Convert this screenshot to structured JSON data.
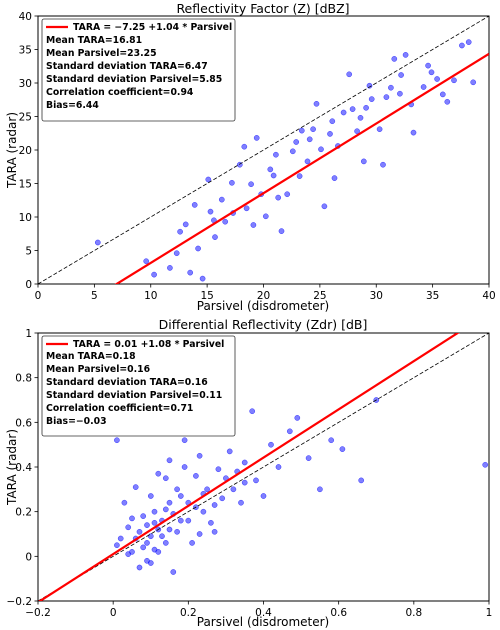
{
  "chart_data": [
    {
      "type": "scatter",
      "title": "Reflectivity Factor (Z) [dBZ]",
      "xlabel": "Parsivel (disdrometer)",
      "ylabel": "TARA (radar)",
      "xlim": [
        0,
        40
      ],
      "ylim": [
        0,
        40
      ],
      "xticks": [
        "0",
        "5",
        "10",
        "15",
        "20",
        "25",
        "30",
        "35",
        "40"
      ],
      "yticks": [
        "0",
        "5",
        "10",
        "15",
        "20",
        "25",
        "30",
        "35",
        "40"
      ],
      "grid": false,
      "legend_position": "top-left",
      "fit": {
        "intercept": -7.25,
        "slope": 1.04
      },
      "fit_label": "TARA = −7.25 +1.04 * Parsivel",
      "stats": [
        "Mean TARA=16.81",
        "Mean Parsivel=23.25",
        "Standard deviation TARA=6.47",
        "Standard deviation Parsivel=5.85",
        "Correlation coefficient=0.94",
        "Bias=6.44"
      ],
      "colors": {
        "points": "#0000ff",
        "fit_line": "#ff0000",
        "identity_line": "#000000"
      },
      "series": [
        {
          "values": [
            [
              5.3,
              6.2
            ],
            [
              9.6,
              3.4
            ],
            [
              10.3,
              1.4
            ],
            [
              11.7,
              2.4
            ],
            [
              12.3,
              4.6
            ],
            [
              13.5,
              1.7
            ],
            [
              14.6,
              0.8
            ],
            [
              15.7,
              7.0
            ],
            [
              13.1,
              8.9
            ],
            [
              13.9,
              11.8
            ],
            [
              15.1,
              15.6
            ],
            [
              14.2,
              5.3
            ],
            [
              12.6,
              7.8
            ],
            [
              15.6,
              9.5
            ],
            [
              16.3,
              12.6
            ],
            [
              17.2,
              15.1
            ],
            [
              17.9,
              17.8
            ],
            [
              18.3,
              20.5
            ],
            [
              19.4,
              21.8
            ],
            [
              18.5,
              11.3
            ],
            [
              19.1,
              8.8
            ],
            [
              20.2,
              10.1
            ],
            [
              21.3,
              12.9
            ],
            [
              21.6,
              7.9
            ],
            [
              22.1,
              13.4
            ],
            [
              23.2,
              16.1
            ],
            [
              23.4,
              22.9
            ],
            [
              24.4,
              23.1
            ],
            [
              24.7,
              26.9
            ],
            [
              25.1,
              20.1
            ],
            [
              25.4,
              11.6
            ],
            [
              26.3,
              15.8
            ],
            [
              27.1,
              25.6
            ],
            [
              27.6,
              31.3
            ],
            [
              28.3,
              22.8
            ],
            [
              28.9,
              18.3
            ],
            [
              29.4,
              29.6
            ],
            [
              30.3,
              23.1
            ],
            [
              30.6,
              17.8
            ],
            [
              31.3,
              29.3
            ],
            [
              31.6,
              33.6
            ],
            [
              32.2,
              31.2
            ],
            [
              32.6,
              34.2
            ],
            [
              33.1,
              26.8
            ],
            [
              33.3,
              22.6
            ],
            [
              34.2,
              29.4
            ],
            [
              34.6,
              32.6
            ],
            [
              35.4,
              30.6
            ],
            [
              36.3,
              27.2
            ],
            [
              37.6,
              35.6
            ],
            [
              38.2,
              36.1
            ],
            [
              38.6,
              30.1
            ],
            [
              17.3,
              10.6
            ],
            [
              18.9,
              14.9
            ],
            [
              20.6,
              17.1
            ],
            [
              22.6,
              19.8
            ],
            [
              24.1,
              21.6
            ],
            [
              26.1,
              24.3
            ],
            [
              27.9,
              26.1
            ],
            [
              29.6,
              27.6
            ],
            [
              21.1,
              19.3
            ],
            [
              19.8,
              13.4
            ],
            [
              23.9,
              18.3
            ],
            [
              26.6,
              20.6
            ],
            [
              28.6,
              24.8
            ],
            [
              30.9,
              27.9
            ],
            [
              16.6,
              9.3
            ],
            [
              15.3,
              10.8
            ],
            [
              20.9,
              16.2
            ],
            [
              22.9,
              21.2
            ],
            [
              25.9,
              22.4
            ],
            [
              29.1,
              26.3
            ],
            [
              32.1,
              28.4
            ],
            [
              34.9,
              31.6
            ],
            [
              36.9,
              30.4
            ],
            [
              35.9,
              28.3
            ]
          ]
        }
      ]
    },
    {
      "type": "scatter",
      "title": "Differential Reflectivity (Zdr) [dB]",
      "xlabel": "Parsivel (disdrometer)",
      "ylabel": "TARA (radar)",
      "xlim": [
        -0.2,
        1
      ],
      "ylim": [
        -0.2,
        1
      ],
      "xticks": [
        "−0.2",
        "0",
        "0.2",
        "0.4",
        "0.6",
        "0.8",
        "1"
      ],
      "yticks": [
        "−0.2",
        "0",
        "0.2",
        "0.4",
        "0.6",
        "0.8",
        "1"
      ],
      "grid": false,
      "legend_position": "top-left",
      "fit": {
        "intercept": 0.01,
        "slope": 1.08
      },
      "fit_label": "TARA = 0.01 +1.08 * Parsivel",
      "stats": [
        "Mean TARA=0.18",
        "Mean Parsivel=0.16",
        "Standard deviation TARA=0.16",
        "Standard deviation Parsivel=0.11",
        "Correlation coefficient=0.71",
        "Bias=−0.03"
      ],
      "colors": {
        "points": "#0000ff",
        "fit_line": "#ff0000",
        "identity_line": "#000000"
      },
      "series": [
        {
          "values": [
            [
              0.01,
              0.52
            ],
            [
              0.01,
              0.05
            ],
            [
              0.03,
              0.24
            ],
            [
              0.04,
              0.13
            ],
            [
              0.05,
              0.02
            ],
            [
              0.06,
              0.31
            ],
            [
              0.07,
              0.11
            ],
            [
              0.07,
              -0.05
            ],
            [
              0.08,
              0.18
            ],
            [
              0.09,
              0.06
            ],
            [
              0.1,
              0.27
            ],
            [
              0.1,
              -0.03
            ],
            [
              0.11,
              0.15
            ],
            [
              0.12,
              0.37
            ],
            [
              0.12,
              0.02
            ],
            [
              0.13,
              0.09
            ],
            [
              0.14,
              0.21
            ],
            [
              0.15,
              0.43
            ],
            [
              0.15,
              0.12
            ],
            [
              0.16,
              -0.07
            ],
            [
              0.17,
              0.3
            ],
            [
              0.18,
              0.16
            ],
            [
              0.19,
              0.52
            ],
            [
              0.2,
              0.24
            ],
            [
              0.21,
              0.06
            ],
            [
              0.22,
              0.36
            ],
            [
              0.23,
              0.45
            ],
            [
              0.24,
              0.2
            ],
            [
              0.25,
              0.3
            ],
            [
              0.26,
              0.57
            ],
            [
              0.27,
              0.11
            ],
            [
              0.28,
              0.39
            ],
            [
              0.29,
              0.26
            ],
            [
              0.3,
              0.6
            ],
            [
              0.31,
              0.47
            ],
            [
              0.32,
              0.3
            ],
            [
              0.33,
              0.38
            ],
            [
              0.34,
              0.24
            ],
            [
              0.35,
              0.42
            ],
            [
              0.37,
              0.65
            ],
            [
              0.38,
              0.34
            ],
            [
              0.4,
              0.27
            ],
            [
              0.42,
              0.5
            ],
            [
              0.44,
              0.4
            ],
            [
              0.47,
              0.56
            ],
            [
              0.49,
              0.62
            ],
            [
              0.52,
              0.44
            ],
            [
              0.55,
              0.3
            ],
            [
              0.58,
              0.52
            ],
            [
              0.61,
              0.48
            ],
            [
              0.66,
              0.34
            ],
            [
              0.7,
              0.7
            ],
            [
              0.99,
              0.41
            ],
            [
              0.05,
              0.17
            ],
            [
              0.06,
              0.08
            ],
            [
              0.08,
              0.04
            ],
            [
              0.09,
              0.14
            ],
            [
              0.1,
              0.09
            ],
            [
              0.11,
              0.2
            ],
            [
              0.12,
              0.12
            ],
            [
              0.13,
              0.16
            ],
            [
              0.14,
              0.06
            ],
            [
              0.15,
              0.24
            ],
            [
              0.16,
              0.19
            ],
            [
              0.17,
              0.11
            ],
            [
              0.18,
              0.27
            ],
            [
              0.2,
              0.16
            ],
            [
              0.22,
              0.22
            ],
            [
              0.24,
              0.28
            ],
            [
              0.27,
              0.23
            ],
            [
              0.3,
              0.35
            ],
            [
              0.35,
              0.33
            ],
            [
              0.09,
              -0.02
            ],
            [
              0.11,
              0.03
            ],
            [
              0.14,
              0.35
            ],
            [
              0.19,
              0.4
            ],
            [
              0.23,
              0.1
            ],
            [
              0.26,
              0.15
            ],
            [
              0.02,
              0.08
            ],
            [
              0.04,
              0.01
            ]
          ]
        }
      ]
    }
  ]
}
